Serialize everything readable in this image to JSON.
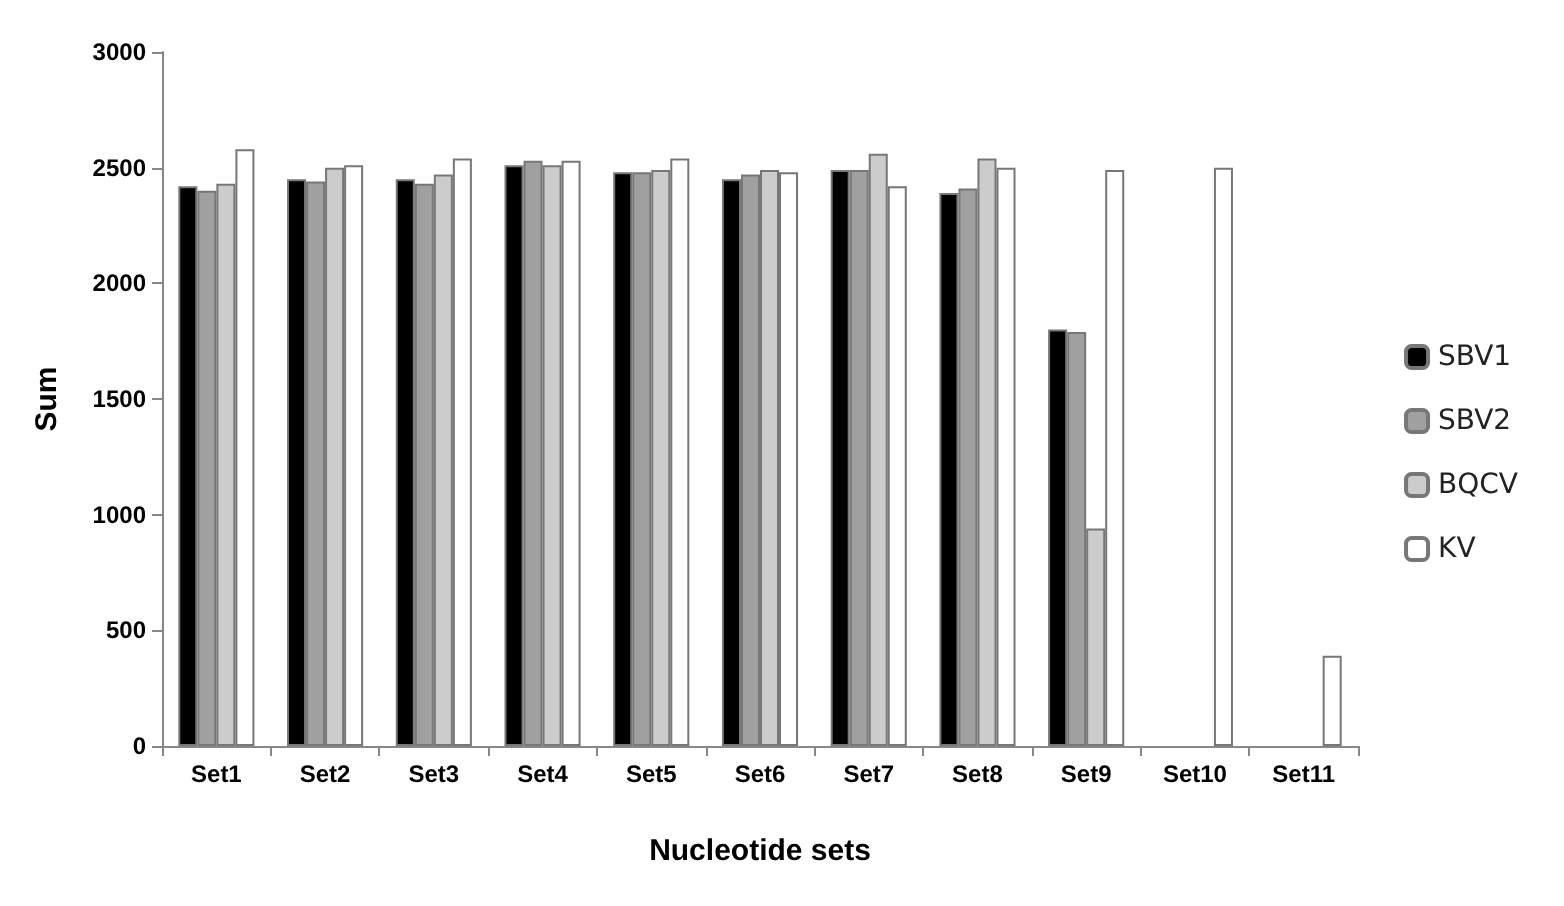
{
  "chart_data": {
    "type": "bar",
    "xlabel": "Nucleotide sets",
    "ylabel": "Sum",
    "categories": [
      "Set1",
      "Set2",
      "Set3",
      "Set4",
      "Set5",
      "Set6",
      "Set7",
      "Set8",
      "Set9",
      "Set10",
      "Set11"
    ],
    "series": [
      {
        "name": "SBV1",
        "color": "#000000",
        "values": [
          2420,
          2450,
          2450,
          2510,
          2480,
          2450,
          2490,
          2390,
          1800,
          0,
          0
        ]
      },
      {
        "name": "SBV2",
        "color": "#a0a0a0",
        "values": [
          2400,
          2440,
          2430,
          2530,
          2480,
          2470,
          2490,
          2410,
          1790,
          0,
          0
        ]
      },
      {
        "name": "BQCV",
        "color": "#cccccc",
        "values": [
          2430,
          2500,
          2470,
          2510,
          2490,
          2490,
          2560,
          2540,
          940,
          0,
          0
        ]
      },
      {
        "name": "KV",
        "color": "#ffffff",
        "values": [
          2580,
          2510,
          2540,
          2530,
          2540,
          2480,
          2420,
          2500,
          2490,
          2500,
          390
        ]
      }
    ],
    "ylim": [
      0,
      3000
    ],
    "yticks": [
      0,
      500,
      1000,
      1500,
      2000,
      2500,
      3000
    ],
    "grid": false,
    "legend": "right"
  }
}
